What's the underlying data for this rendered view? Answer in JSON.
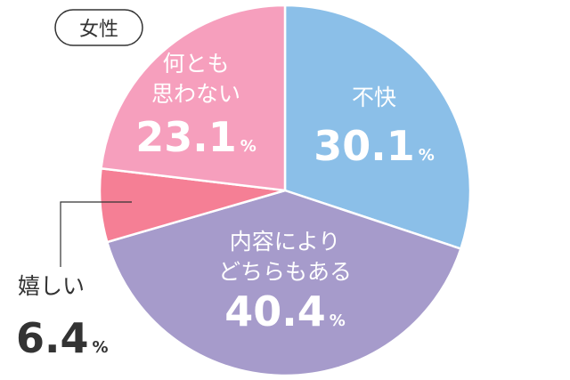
{
  "badge": "女性",
  "chart_data": {
    "type": "pie",
    "title": "",
    "unit": "%",
    "slices": [
      {
        "label": "不快",
        "value": 30.1,
        "color": "#8bbfe8"
      },
      {
        "label": "内容によりどちらもある",
        "value": 40.4,
        "color": "#a69bcb"
      },
      {
        "label": "嬉しい",
        "value": 6.4,
        "color": "#f57f95"
      },
      {
        "label": "何とも思わない",
        "value": 23.1,
        "color": "#f69fbd"
      }
    ],
    "label_lines": {
      "不快": [
        "不快"
      ],
      "内容によりどちらもある": [
        "内容により",
        "どちらもある"
      ],
      "嬉しい": [
        "嬉しい"
      ],
      "何とも思わない": [
        "何とも",
        "思わない"
      ]
    },
    "value_labels": [
      "30.1",
      "40.4",
      "6.4",
      "23.1"
    ]
  }
}
